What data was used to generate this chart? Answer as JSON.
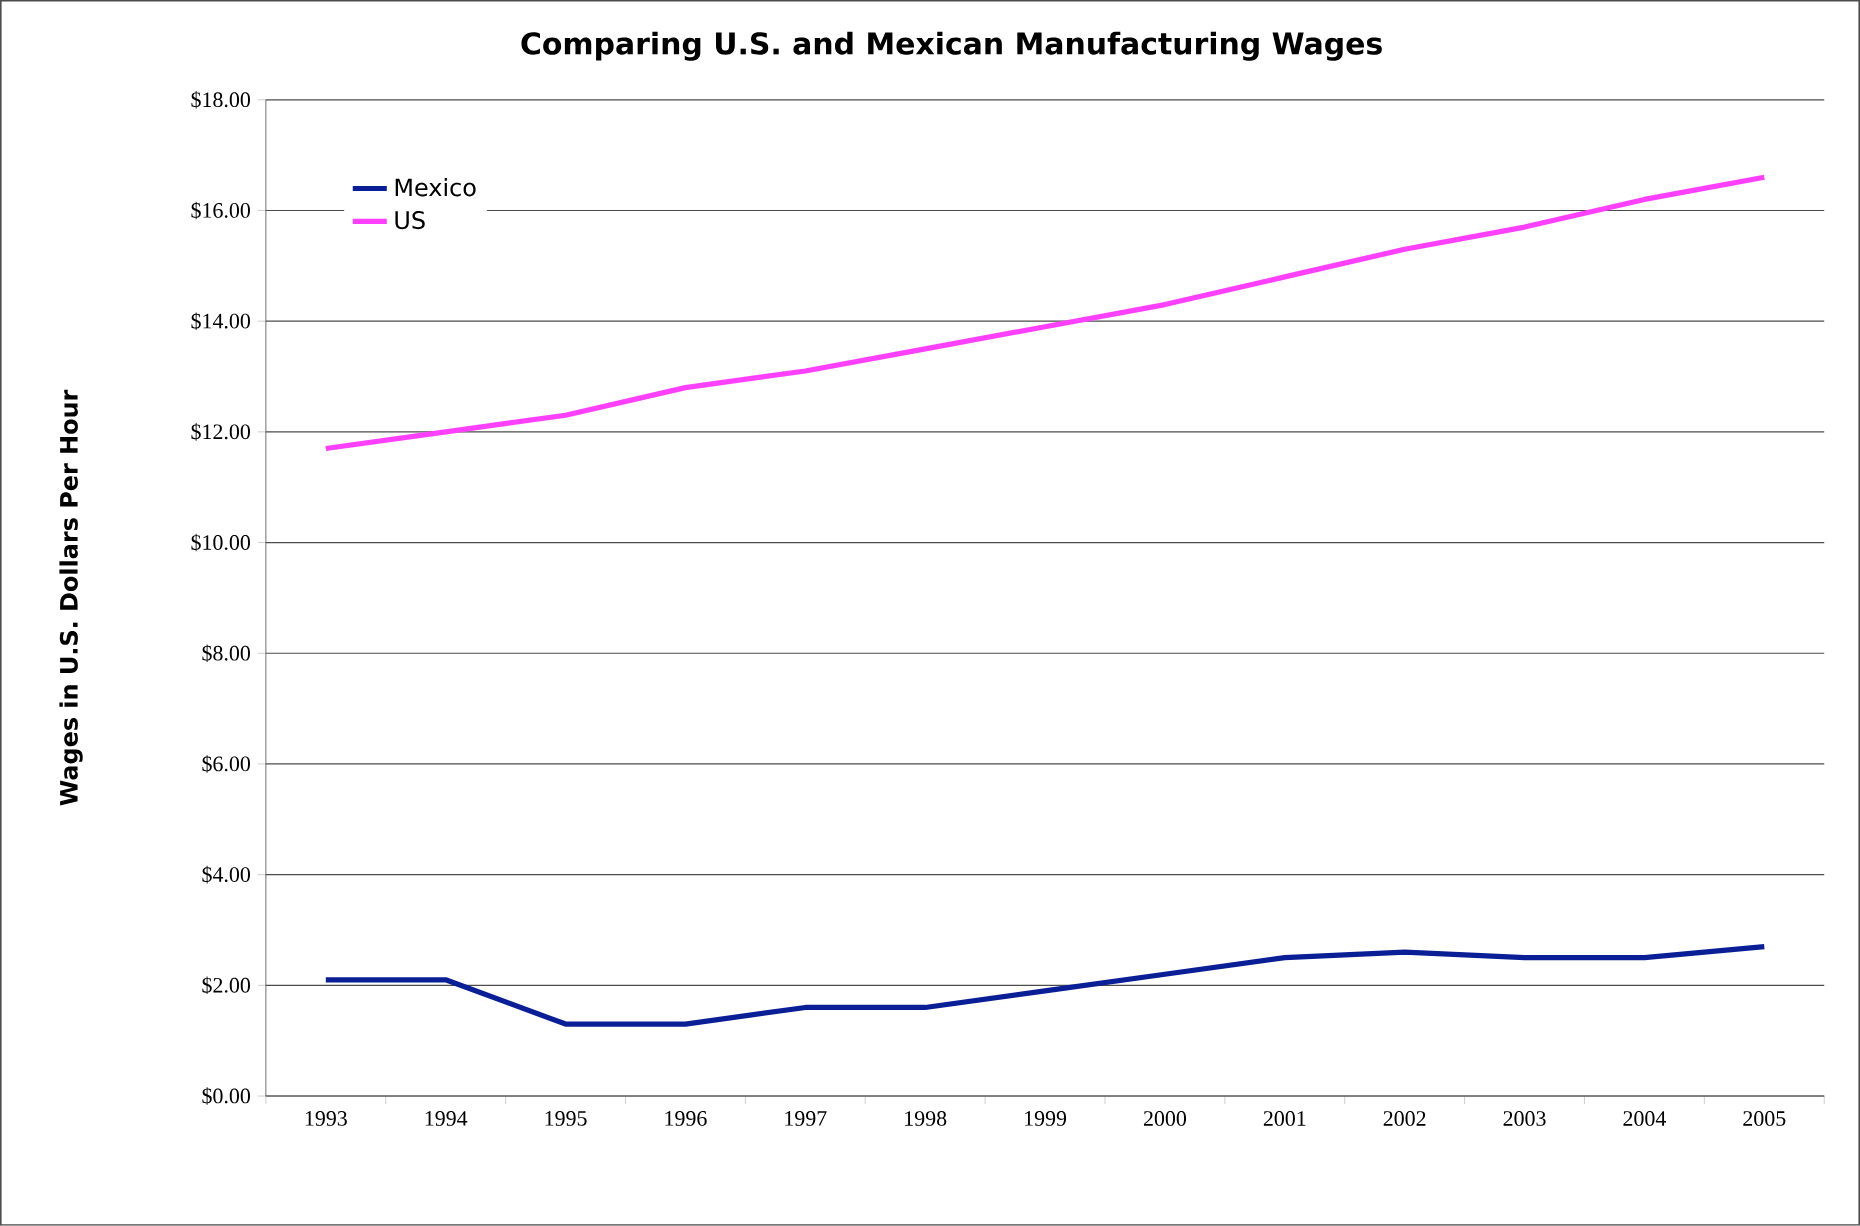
{
  "chart_data": {
    "type": "line",
    "title": "Comparing U.S. and Mexican Manufacturing Wages",
    "ylabel": "Wages in U.S. Dollars Per Hour",
    "categories": [
      "1993",
      "1994",
      "1995",
      "1996",
      "1997",
      "1998",
      "1999",
      "2000",
      "2001",
      "2002",
      "2003",
      "2004",
      "2005"
    ],
    "series": [
      {
        "name": "Mexico",
        "color": "#0a1e96",
        "values": [
          2.1,
          2.1,
          1.3,
          1.3,
          1.6,
          1.6,
          1.9,
          2.2,
          2.5,
          2.6,
          2.5,
          2.5,
          2.7
        ]
      },
      {
        "name": "US",
        "color": "#ff40ff",
        "values": [
          11.7,
          12.0,
          12.3,
          12.8,
          13.1,
          13.5,
          13.9,
          14.3,
          14.8,
          15.3,
          15.7,
          16.2,
          16.6
        ]
      }
    ],
    "ylim": [
      0,
      18
    ],
    "yticks": [
      {
        "value": 0,
        "label": "$0.00"
      },
      {
        "value": 2,
        "label": "$2.00"
      },
      {
        "value": 4,
        "label": "$4.00"
      },
      {
        "value": 6,
        "label": "$6.00"
      },
      {
        "value": 8,
        "label": "$8.00"
      },
      {
        "value": 10,
        "label": "$10.00"
      },
      {
        "value": 12,
        "label": "$12.00"
      },
      {
        "value": 14,
        "label": "$14.00"
      },
      {
        "value": 16,
        "label": "$16.00"
      },
      {
        "value": 18,
        "label": "$18.00"
      }
    ],
    "grid": "y",
    "legend": "top left",
    "line_style": "solid"
  }
}
